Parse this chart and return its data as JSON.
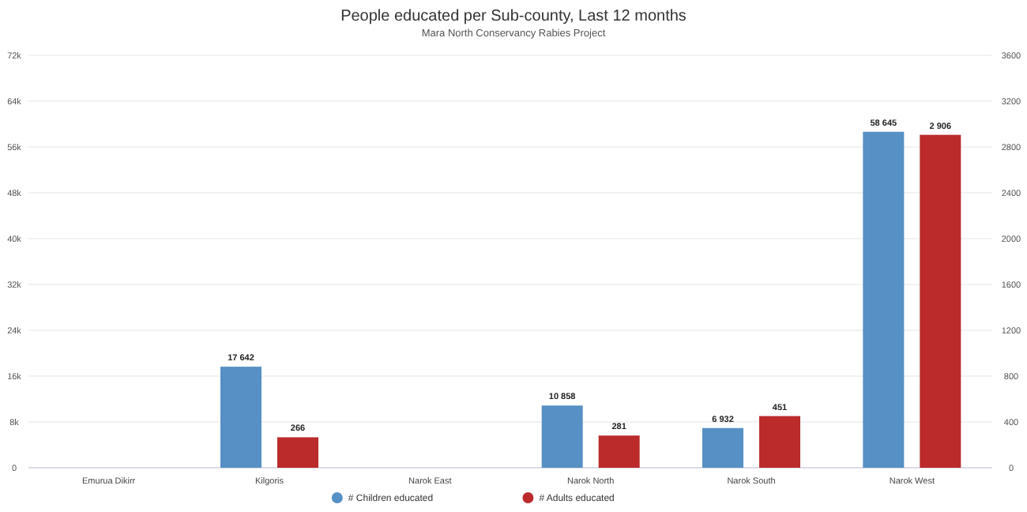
{
  "chart_data": {
    "type": "bar",
    "title": "People educated per Sub-county, Last 12 months",
    "subtitle": "Mara North Conservancy Rabies Project",
    "categories": [
      "Emurua Dikirr",
      "Kilgoris",
      "Narok East",
      "Narok North",
      "Narok South",
      "Narok West"
    ],
    "series": [
      {
        "name": "# Children educated",
        "color": "#5790c4",
        "values": [
          null,
          17642,
          null,
          10858,
          6932,
          58645
        ],
        "value_labels": [
          null,
          "17 642",
          null,
          "10 858",
          "6 932",
          "58 645"
        ]
      },
      {
        "name": "# Adults educated",
        "color": "#bb2b2b",
        "axis": "y2",
        "values": [
          null,
          266,
          null,
          281,
          451,
          2906
        ],
        "value_labels": [
          null,
          "266",
          null,
          "281",
          "451",
          "2 906"
        ]
      }
    ],
    "ylim": [
      0,
      72000
    ],
    "yticks": [
      {
        "value": 0,
        "label": "0"
      },
      {
        "value": 8000,
        "label": "8k"
      },
      {
        "value": 16000,
        "label": "16k"
      },
      {
        "value": 24000,
        "label": "24k"
      },
      {
        "value": 32000,
        "label": "32k"
      },
      {
        "value": 40000,
        "label": "40k"
      },
      {
        "value": 48000,
        "label": "48k"
      },
      {
        "value": 56000,
        "label": "56k"
      },
      {
        "value": 64000,
        "label": "64k"
      },
      {
        "value": 72000,
        "label": "72k"
      }
    ],
    "y2lim": [
      0,
      3600
    ],
    "y2ticks": [
      0,
      400,
      800,
      1200,
      1600,
      2000,
      2400,
      2800,
      3200,
      3600
    ],
    "grid": "y",
    "legend": "bottom"
  }
}
